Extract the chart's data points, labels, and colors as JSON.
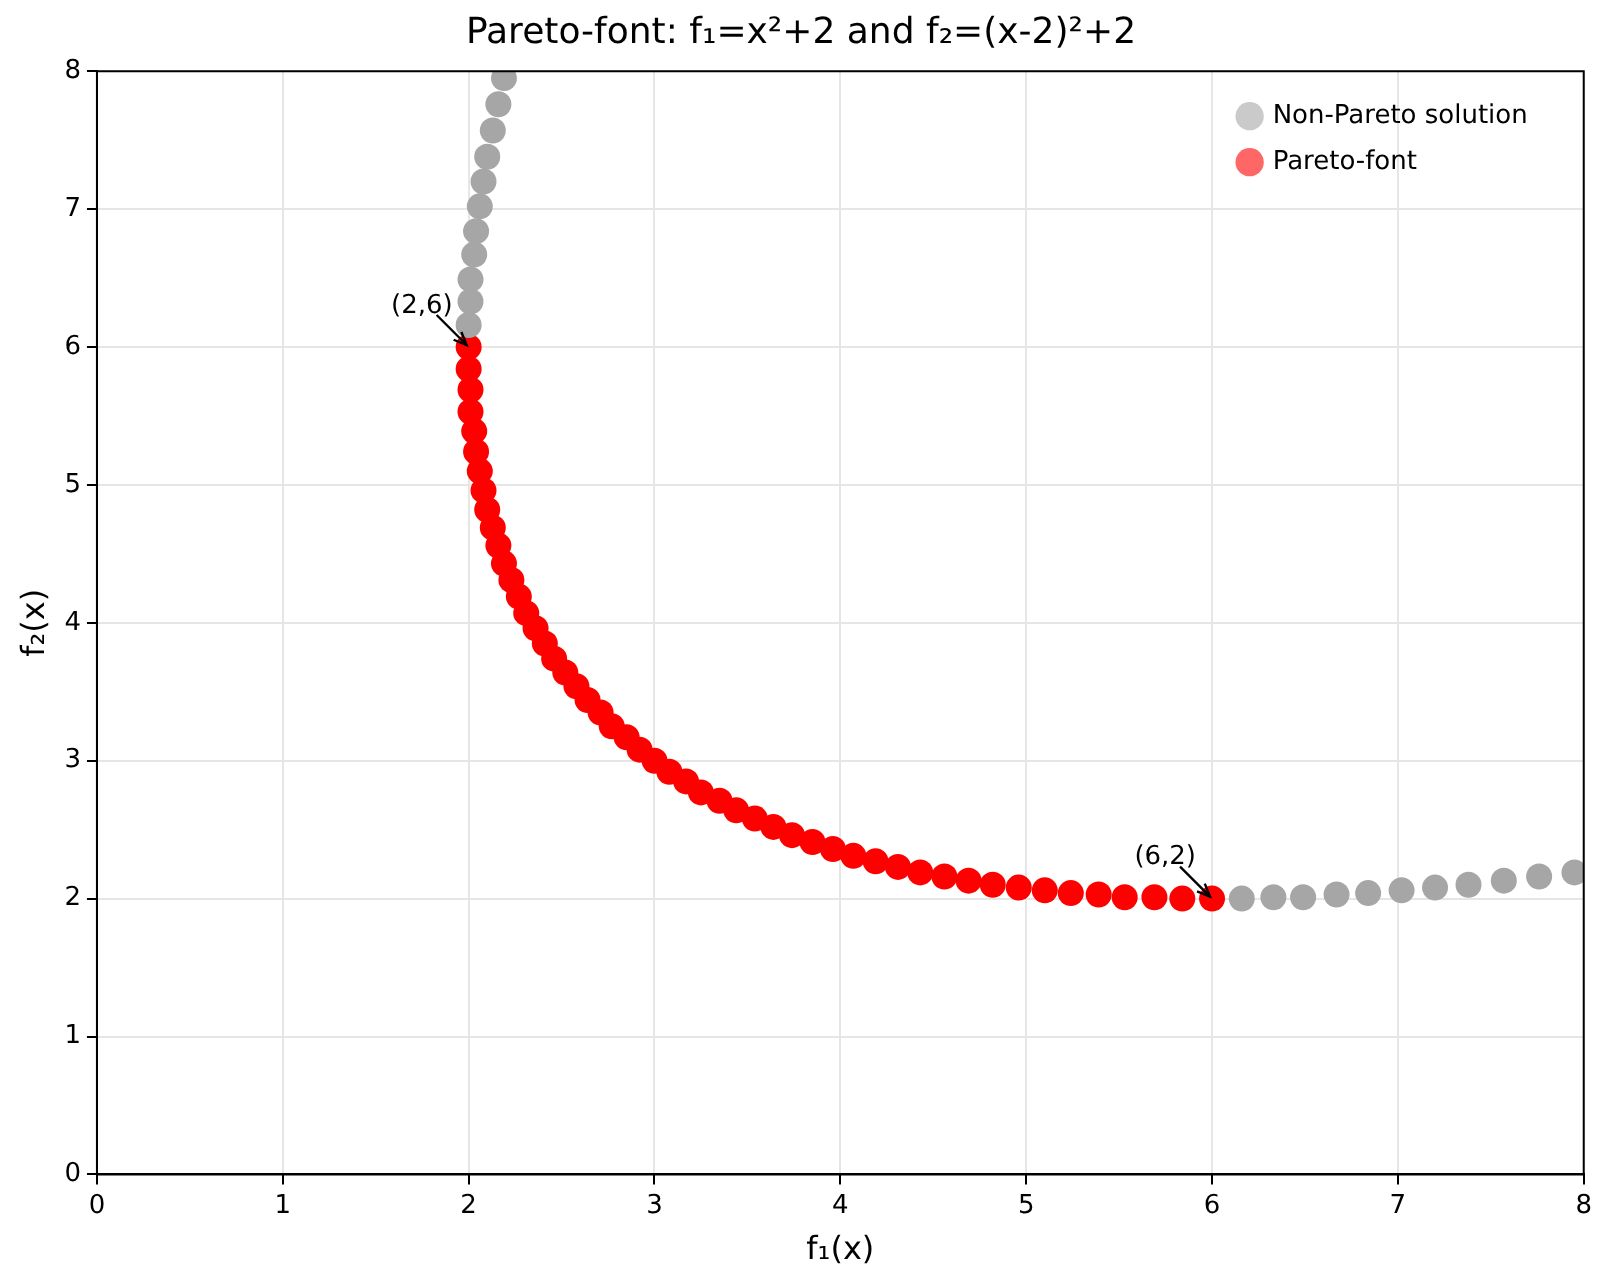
{
  "chart_data": {
    "type": "scatter",
    "title": "Pareto-font: f₁=x²+2 and f₂=(x-2)²+2",
    "xlabel": "f₁(x)",
    "ylabel": "f₂(x)",
    "series": [
      {
        "name": "Non-Pareto solution",
        "color": "#a6a6a6",
        "x": [
          2.19,
          2.16,
          2.13,
          2.1,
          2.08,
          2.06,
          2.04,
          2.03,
          2.01,
          2.01,
          2.0,
          6.16,
          6.33,
          6.49,
          6.67,
          6.84,
          7.02,
          7.2,
          7.38,
          7.57,
          7.76,
          7.95
        ],
        "values": [
          7.95,
          7.76,
          7.57,
          7.38,
          7.2,
          7.02,
          6.84,
          6.67,
          6.49,
          6.33,
          6.16,
          2.0,
          2.01,
          2.01,
          2.03,
          2.04,
          2.06,
          2.08,
          2.1,
          2.13,
          2.16,
          2.19
        ]
      },
      {
        "name": "Pareto-font",
        "color": "#ff0000",
        "x": [
          2.0,
          2.0,
          2.01,
          2.01,
          2.03,
          2.04,
          2.06,
          2.08,
          2.1,
          2.13,
          2.16,
          2.19,
          2.23,
          2.27,
          2.31,
          2.36,
          2.41,
          2.46,
          2.52,
          2.58,
          2.64,
          2.71,
          2.77,
          2.85,
          2.92,
          3.0,
          3.08,
          3.17,
          3.25,
          3.35,
          3.44,
          3.54,
          3.64,
          3.74,
          3.85,
          3.96,
          4.07,
          4.19,
          4.31,
          4.43,
          4.56,
          4.69,
          4.82,
          4.96,
          5.1,
          5.24,
          5.39,
          5.53,
          5.69,
          5.84,
          6.0
        ],
        "values": [
          6.0,
          5.84,
          5.69,
          5.53,
          5.39,
          5.24,
          5.1,
          4.96,
          4.82,
          4.69,
          4.56,
          4.43,
          4.31,
          4.19,
          4.07,
          3.96,
          3.85,
          3.74,
          3.64,
          3.54,
          3.44,
          3.35,
          3.25,
          3.17,
          3.08,
          3.0,
          2.92,
          2.85,
          2.77,
          2.71,
          2.64,
          2.58,
          2.52,
          2.46,
          2.41,
          2.36,
          2.31,
          2.27,
          2.23,
          2.19,
          2.16,
          2.13,
          2.1,
          2.08,
          2.06,
          2.04,
          2.03,
          2.01,
          2.01,
          2.0,
          2.0
        ]
      }
    ],
    "annotations": [
      {
        "text": "(2,6)",
        "x": 2,
        "y": 6
      },
      {
        "text": "(6,2)",
        "x": 6,
        "y": 2
      }
    ],
    "xlim": [
      0,
      8
    ],
    "ylim": [
      0,
      8
    ],
    "xticks": [
      0,
      1,
      2,
      3,
      4,
      5,
      6,
      7,
      8
    ],
    "yticks": [
      0,
      1,
      2,
      3,
      4,
      5,
      6,
      7,
      8
    ],
    "grid": true,
    "legend": "top right",
    "marker": "circle"
  }
}
